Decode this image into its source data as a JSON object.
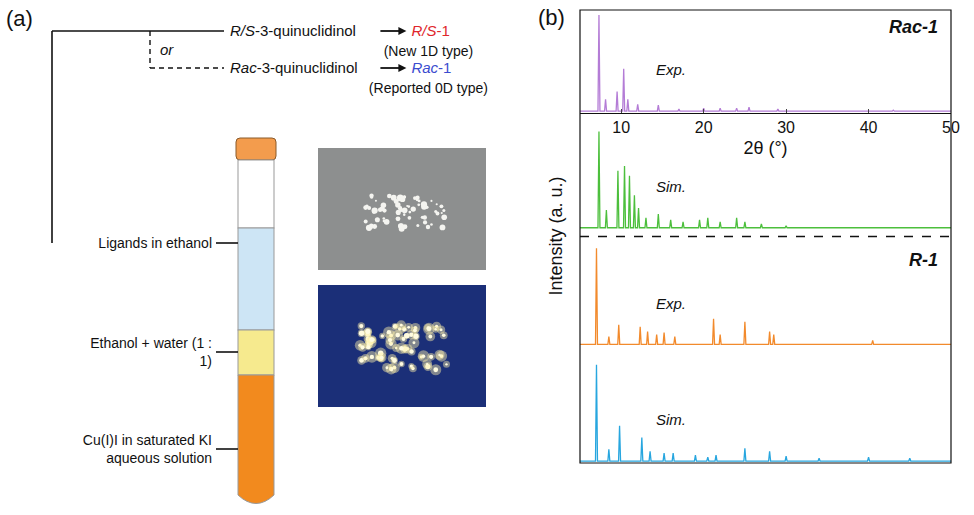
{
  "panel_a": {
    "label": "(a)",
    "routes": [
      {
        "ligand": "R/S-3-quinuclidinol",
        "product": "R/S-1",
        "note": "(New 1D type)",
        "color": "#e0262b"
      },
      {
        "ligand": "Rac-3-quinuclidinol",
        "product": "Rac-1",
        "note": "(Reported 0D type)",
        "color": "#3a4ccf"
      }
    ],
    "branch_word": "or",
    "layers": [
      "Ligands in ethanol",
      "Ethanol + water (1 : 1)",
      "Cu(I)I in saturated KI aqueous solution"
    ]
  },
  "chart_data": {
    "type": "line",
    "panel_label": "(b)",
    "x_label": "2θ (°)",
    "y_label": "Intensity (a. u.)",
    "xlim": [
      5,
      50
    ],
    "xticks": [
      10,
      20,
      30,
      40,
      50
    ],
    "ylim": [
      0,
      105
    ],
    "tick_labels": "x",
    "grid": false,
    "groups": [
      {
        "name": "Rac-1",
        "series": [
          {
            "name": "Exp.",
            "color": "#b47cd6",
            "x": [
              5,
              7.18,
              7.3,
              7.42,
              7.98,
              8.1,
              8.22,
              9.38,
              9.5,
              9.62,
              10.18,
              10.3,
              10.42,
              10.68,
              10.8,
              10.92,
              11.88,
              12.0,
              12.12,
              14.38,
              14.5,
              14.62,
              16.88,
              17.0,
              17.12,
              19.88,
              20.0,
              20.12,
              21.88,
              22.0,
              22.12,
              23.88,
              24.0,
              24.12,
              25.38,
              25.5,
              25.62,
              28.88,
              29.0,
              29.12,
              42.88,
              43.0,
              43.12,
              50
            ],
            "values": [
              2,
              2,
              100,
              2,
              2,
              14,
              2,
              2,
              22,
              2,
              2,
              45,
              2,
              2,
              14,
              2,
              2,
              9,
              2,
              2,
              8,
              2,
              2,
              4,
              2,
              2,
              5,
              2,
              2,
              5,
              2,
              2,
              5,
              2,
              2,
              6,
              2,
              2,
              4,
              2,
              2,
              3,
              2,
              2
            ]
          },
          {
            "name": "Sim.",
            "color": "#4cbf3c",
            "x": [
              5,
              7.18,
              7.3,
              7.42,
              8.08,
              8.2,
              8.32,
              9.48,
              9.6,
              9.72,
              10.28,
              10.4,
              10.52,
              10.88,
              11.0,
              11.12,
              11.48,
              11.6,
              11.72,
              11.98,
              12.1,
              12.22,
              12.88,
              13.0,
              13.12,
              14.38,
              14.5,
              14.62,
              15.88,
              16.0,
              16.12,
              17.38,
              17.5,
              17.62,
              19.38,
              19.5,
              19.62,
              20.38,
              20.5,
              20.62,
              21.88,
              22.0,
              22.12,
              23.88,
              24.0,
              24.12,
              24.88,
              25.0,
              25.12,
              26.88,
              27.0,
              27.12,
              29.88,
              30.0,
              30.12,
              50
            ],
            "values": [
              2,
              2,
              100,
              2,
              2,
              20,
              2,
              2,
              60,
              2,
              2,
              65,
              2,
              2,
              55,
              2,
              2,
              35,
              2,
              2,
              22,
              2,
              2,
              12,
              2,
              2,
              16,
              2,
              2,
              10,
              2,
              2,
              8,
              2,
              2,
              10,
              2,
              2,
              12,
              2,
              2,
              8,
              2,
              2,
              12,
              2,
              2,
              8,
              2,
              2,
              6,
              2,
              2,
              4,
              2,
              2
            ]
          }
        ]
      },
      {
        "name": "R-1",
        "series": [
          {
            "name": "Exp.",
            "color": "#f28a2c",
            "x": [
              5,
              6.88,
              7.0,
              7.12,
              8.38,
              8.5,
              8.62,
              9.58,
              9.7,
              9.82,
              12.18,
              12.3,
              12.42,
              13.08,
              13.2,
              13.32,
              14.18,
              14.3,
              14.42,
              15.08,
              15.2,
              15.32,
              16.38,
              16.5,
              16.62,
              21.08,
              21.2,
              21.32,
              21.88,
              22.0,
              22.12,
              24.88,
              25.0,
              25.12,
              27.88,
              28.0,
              28.12,
              28.38,
              28.5,
              28.62,
              40.38,
              40.5,
              40.62,
              50
            ],
            "values": [
              2,
              2,
              100,
              2,
              2,
              10,
              2,
              2,
              22,
              2,
              2,
              20,
              2,
              2,
              15,
              2,
              2,
              12,
              2,
              2,
              14,
              2,
              2,
              10,
              2,
              2,
              28,
              2,
              2,
              12,
              2,
              2,
              25,
              2,
              2,
              15,
              2,
              2,
              12,
              2,
              2,
              6,
              2,
              2
            ]
          },
          {
            "name": "Sim.",
            "color": "#27a6df",
            "x": [
              5,
              6.88,
              7.0,
              7.12,
              8.38,
              8.5,
              8.62,
              9.68,
              9.8,
              9.92,
              12.38,
              12.5,
              12.62,
              13.38,
              13.5,
              13.62,
              15.08,
              15.2,
              15.32,
              16.18,
              16.3,
              16.42,
              18.88,
              19.0,
              19.12,
              20.38,
              20.5,
              20.62,
              21.38,
              21.5,
              21.62,
              24.88,
              25.0,
              25.12,
              27.88,
              28.0,
              28.12,
              29.88,
              30.0,
              30.12,
              33.88,
              34.0,
              34.12,
              39.88,
              40.0,
              40.12,
              44.88,
              45.0,
              45.12,
              50
            ],
            "values": [
              2,
              2,
              100,
              2,
              2,
              14,
              2,
              2,
              38,
              2,
              2,
              26,
              2,
              2,
              12,
              2,
              2,
              10,
              2,
              2,
              10,
              2,
              2,
              8,
              2,
              2,
              6,
              2,
              2,
              8,
              2,
              2,
              15,
              2,
              2,
              12,
              2,
              2,
              7,
              2,
              2,
              5,
              2,
              2,
              6,
              2,
              2,
              5,
              2,
              2
            ]
          }
        ]
      }
    ]
  }
}
